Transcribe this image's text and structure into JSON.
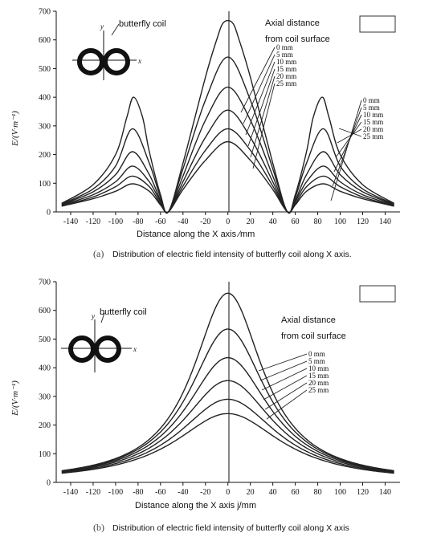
{
  "chart_data": [
    {
      "type": "line",
      "panel": "a",
      "caption_letter": "(a)",
      "caption": "Distribution of electric field intensity of butterfly coil along X axis.",
      "xlabel": "Distance along the X axis ∕mm",
      "ylabel": "E/(V·m⁻¹)",
      "xlim": [
        -150,
        150
      ],
      "ylim": [
        0,
        700
      ],
      "x_ticks": [
        -140,
        -120,
        -100,
        -80,
        -60,
        -40,
        -20,
        0,
        20,
        40,
        60,
        80,
        100,
        120,
        140
      ],
      "y_ticks": [
        0,
        100,
        200,
        300,
        400,
        500,
        600,
        700
      ],
      "coil_label": "butterfly coil",
      "legend_title_1": "Axial distance",
      "legend_title_2": "from coil surface",
      "series": [
        {
          "name": "0 mm",
          "x": [
            -148,
            -120,
            -100,
            -90,
            -84,
            -76,
            -70,
            -60,
            -53,
            -40,
            -20,
            -10,
            -4,
            4,
            10,
            20,
            40,
            53,
            60,
            70,
            76,
            84,
            90,
            100,
            120,
            148
          ],
          "y": [
            30,
            95,
            200,
            330,
            400,
            330,
            210,
            60,
            0,
            170,
            470,
            600,
            660,
            660,
            600,
            470,
            170,
            0,
            60,
            210,
            330,
            400,
            330,
            200,
            95,
            30
          ]
        },
        {
          "name": "5 mm",
          "x": [
            -148,
            -120,
            -100,
            -85,
            -70,
            -60,
            -53,
            -40,
            -20,
            0,
            20,
            40,
            53,
            60,
            70,
            85,
            100,
            120,
            148
          ],
          "y": [
            28,
            80,
            160,
            290,
            170,
            50,
            0,
            150,
            390,
            540,
            390,
            150,
            0,
            50,
            170,
            290,
            160,
            80,
            28
          ]
        },
        {
          "name": "10 mm",
          "x": [
            -148,
            -120,
            -100,
            -85,
            -70,
            -60,
            -53,
            -40,
            -20,
            0,
            20,
            40,
            53,
            60,
            70,
            85,
            100,
            120,
            148
          ],
          "y": [
            26,
            70,
            130,
            210,
            130,
            40,
            0,
            125,
            320,
            435,
            320,
            125,
            0,
            40,
            130,
            210,
            130,
            70,
            26
          ]
        },
        {
          "name": "15 mm",
          "x": [
            -148,
            -120,
            -100,
            -85,
            -70,
            -60,
            -53,
            -40,
            -20,
            0,
            20,
            40,
            53,
            60,
            70,
            85,
            100,
            120,
            148
          ],
          "y": [
            24,
            60,
            105,
            160,
            105,
            35,
            0,
            105,
            260,
            355,
            260,
            105,
            0,
            35,
            105,
            160,
            105,
            60,
            24
          ]
        },
        {
          "name": "20 mm",
          "x": [
            -148,
            -120,
            -100,
            -85,
            -70,
            -60,
            -53,
            -40,
            -20,
            0,
            20,
            40,
            53,
            60,
            70,
            85,
            100,
            120,
            148
          ],
          "y": [
            22,
            52,
            88,
            125,
            88,
            28,
            0,
            90,
            215,
            290,
            215,
            90,
            0,
            28,
            88,
            125,
            88,
            52,
            22
          ]
        },
        {
          "name": "25 mm",
          "x": [
            -148,
            -120,
            -100,
            -85,
            -70,
            -60,
            -53,
            -40,
            -20,
            0,
            20,
            40,
            53,
            60,
            70,
            85,
            100,
            120,
            148
          ],
          "y": [
            20,
            46,
            72,
            98,
            72,
            24,
            0,
            78,
            180,
            245,
            180,
            78,
            0,
            24,
            72,
            98,
            72,
            46,
            20
          ]
        }
      ]
    },
    {
      "type": "line",
      "panel": "b",
      "caption_letter": "(b)",
      "caption": "Distribution of electric field intensity of butterfly coil along X axis",
      "xlabel": "Distance along the X axis j/mm",
      "ylabel": "E/(V·m⁻¹)",
      "xlim": [
        -150,
        150
      ],
      "ylim": [
        0,
        700
      ],
      "x_ticks": [
        -140,
        -120,
        -100,
        -80,
        -60,
        -40,
        -20,
        0,
        20,
        40,
        60,
        80,
        100,
        120,
        140
      ],
      "y_ticks": [
        0,
        100,
        200,
        300,
        400,
        500,
        600,
        700
      ],
      "coil_label": "butterfly coil",
      "legend_title_1": "Axial distance",
      "legend_title_2": "from coil surface",
      "series": [
        {
          "name": "0 mm",
          "peak": 660,
          "width": 38
        },
        {
          "name": "5 mm",
          "peak": 535,
          "width": 42
        },
        {
          "name": "10 mm",
          "peak": 435,
          "width": 46
        },
        {
          "name": "15 mm",
          "peak": 355,
          "width": 50
        },
        {
          "name": "20 mm",
          "peak": 290,
          "width": 54
        },
        {
          "name": "25 mm",
          "peak": 240,
          "width": 58
        }
      ]
    }
  ]
}
